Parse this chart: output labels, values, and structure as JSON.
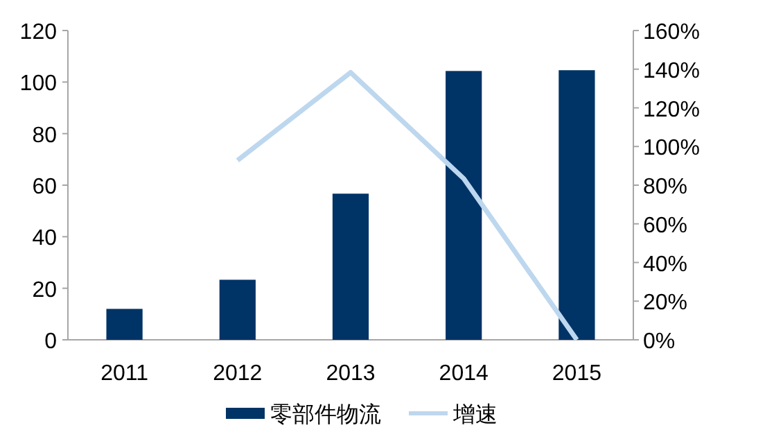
{
  "chart_data": {
    "type": "bar",
    "categories": [
      "2011",
      "2012",
      "2013",
      "2014",
      "2015"
    ],
    "series": [
      {
        "name": "零部件物流",
        "color": "#003366",
        "values": [
          12,
          23.3,
          56.7,
          104.3,
          104.6
        ]
      },
      {
        "name": "增速",
        "type": "line",
        "axis": "y2",
        "color": "#bdd7ee",
        "values": [
          null,
          92.8,
          138.3,
          83.4,
          0
        ]
      }
    ],
    "ylim": [
      0,
      120
    ],
    "yticks": [
      0,
      20,
      40,
      60,
      80,
      100,
      120
    ],
    "y2lim": [
      0,
      160
    ],
    "y2ticks": [
      {
        "value": 0,
        "label": "0%"
      },
      {
        "value": 20,
        "label": "20%"
      },
      {
        "value": 40,
        "label": "40%"
      },
      {
        "value": 60,
        "label": "60%"
      },
      {
        "value": 80,
        "label": "80%"
      },
      {
        "value": 100,
        "label": "100%"
      },
      {
        "value": 120,
        "label": "120%"
      },
      {
        "value": 140,
        "label": "140%"
      },
      {
        "value": 160,
        "label": "160%"
      }
    ],
    "legend": "bottom",
    "grid": false
  }
}
